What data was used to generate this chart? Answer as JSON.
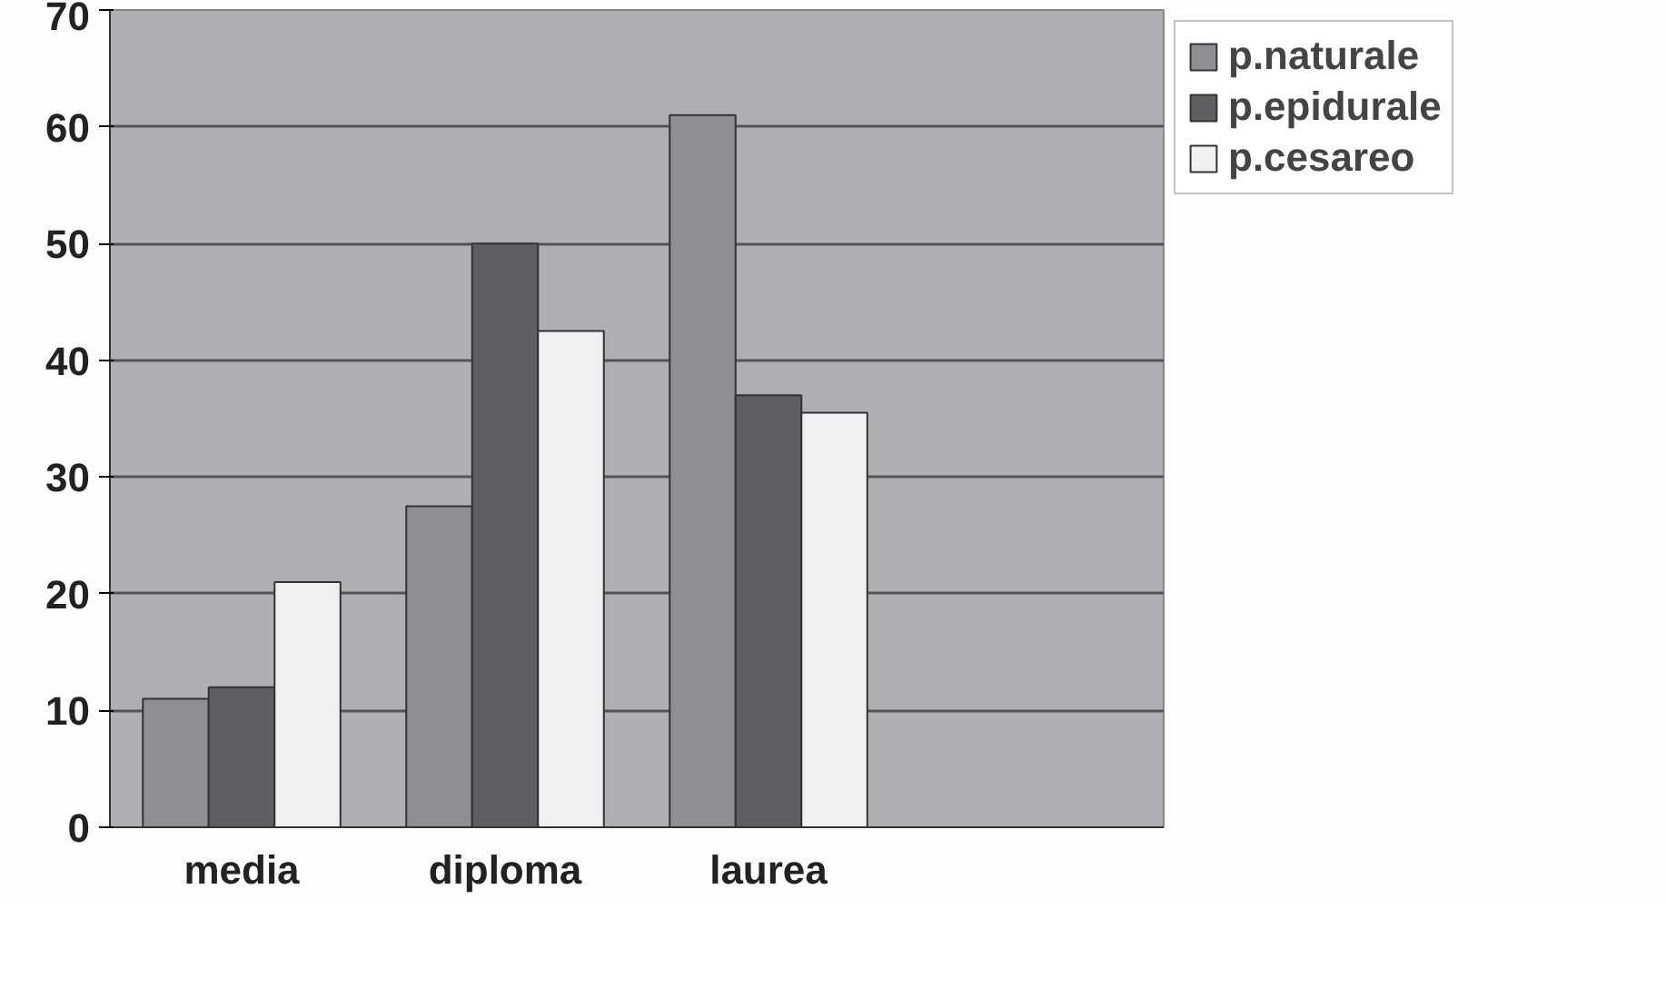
{
  "chart_data": {
    "type": "bar",
    "categories": [
      "media",
      "diploma",
      "laurea",
      null
    ],
    "series": [
      {
        "name": "p.naturale",
        "color": "#8e8e94",
        "values": [
          11,
          27.5,
          61,
          null
        ]
      },
      {
        "name": "p.epidurale",
        "color": "#5f5f63",
        "values": [
          12,
          50,
          37,
          null
        ]
      },
      {
        "name": "p.cesareo",
        "color": "#f0f0f2",
        "values": [
          21,
          42.5,
          35.5,
          null
        ]
      }
    ],
    "ylim": [
      0,
      70
    ],
    "yticks": [
      0,
      10,
      20,
      30,
      40,
      50,
      60,
      70
    ],
    "grid": "y",
    "legend": "top right"
  }
}
